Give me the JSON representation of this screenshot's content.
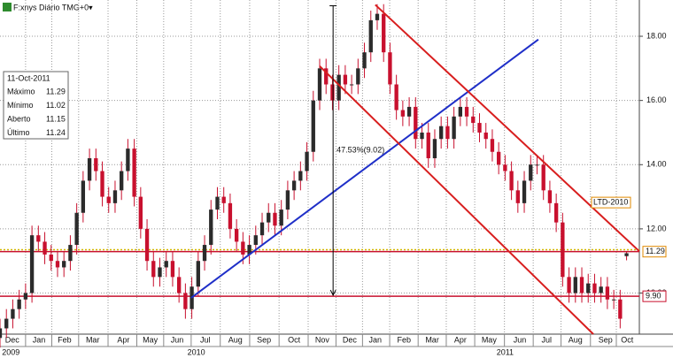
{
  "chart_data": {
    "type": "candlestick",
    "title": "F:xnys Diário TMG+0▾",
    "x": [
      0,
      1,
      2,
      3,
      4,
      5,
      6,
      7,
      8,
      9,
      10,
      11,
      12,
      13,
      14,
      15,
      16,
      17,
      18,
      19,
      20,
      21,
      22,
      23,
      24,
      25,
      26,
      27,
      28,
      29,
      30,
      31,
      32,
      33,
      34,
      35,
      36,
      37,
      38,
      39,
      40,
      41,
      42,
      43,
      44,
      45,
      46,
      47,
      48,
      49,
      50,
      51,
      52,
      53,
      54,
      55,
      56,
      57,
      58,
      59,
      60,
      61,
      62,
      63,
      64,
      65,
      66,
      67,
      68,
      69,
      70,
      71,
      72,
      73,
      74,
      75,
      76,
      77,
      78,
      79,
      80,
      81,
      82,
      83,
      84,
      85,
      86,
      87,
      88,
      89,
      90,
      91,
      92,
      93,
      94,
      95,
      96,
      97,
      98
    ],
    "open": [
      8.6,
      8.9,
      9.2,
      9.5,
      9.8,
      10.0,
      11.8,
      11.6,
      11.2,
      11.0,
      10.8,
      11.0,
      11.5,
      12.5,
      13.5,
      14.2,
      13.8,
      13.0,
      12.8,
      13.2,
      13.8,
      14.5,
      13.0,
      12.0,
      11.0,
      10.5,
      10.8,
      11.0,
      10.5,
      10.0,
      9.5,
      10.2,
      11.0,
      11.5,
      12.6,
      13.0,
      12.8,
      12.0,
      11.6,
      11.2,
      11.5,
      11.8,
      12.2,
      12.5,
      12.1,
      12.6,
      13.2,
      13.5,
      13.8,
      14.4,
      16.0,
      17.0,
      16.5,
      16.0,
      16.8,
      16.5,
      16.5,
      17.0,
      17.5,
      18.5,
      18.7,
      17.5,
      16.5,
      15.7,
      15.5,
      15.8,
      14.8,
      15.0,
      14.2,
      14.8,
      15.2,
      14.8,
      15.5,
      15.8,
      15.5,
      15.3,
      15.0,
      14.8,
      14.4,
      14.0,
      13.8,
      13.2,
      12.8,
      13.5,
      14.0,
      14.0,
      13.2,
      12.8,
      12.2,
      10.5,
      10.0,
      10.5,
      10.0,
      10.3,
      10.0,
      10.2,
      9.8,
      9.8,
      11.15
    ],
    "high": [
      9.2,
      9.5,
      9.8,
      10.1,
      10.3,
      12.1,
      12.1,
      11.9,
      11.5,
      11.3,
      11.3,
      11.8,
      12.8,
      13.8,
      14.5,
      14.5,
      14.1,
      13.3,
      13.5,
      14.1,
      14.8,
      14.8,
      13.3,
      12.3,
      11.3,
      11.1,
      11.3,
      11.3,
      10.8,
      10.3,
      10.5,
      11.3,
      11.8,
      12.9,
      13.3,
      13.3,
      13.1,
      12.3,
      11.9,
      11.8,
      12.1,
      12.5,
      12.8,
      12.8,
      12.9,
      13.5,
      13.8,
      14.1,
      14.7,
      16.3,
      17.3,
      17.3,
      16.8,
      17.1,
      17.1,
      16.8,
      17.3,
      17.8,
      18.8,
      19.0,
      19.0,
      17.8,
      16.8,
      16.0,
      16.1,
      16.1,
      15.3,
      15.3,
      15.1,
      15.5,
      15.5,
      15.8,
      16.1,
      16.1,
      15.8,
      15.6,
      15.3,
      15.1,
      14.7,
      14.3,
      14.1,
      13.5,
      13.8,
      14.3,
      14.3,
      14.3,
      13.5,
      13.1,
      12.5,
      10.8,
      10.8,
      10.8,
      10.6,
      10.6,
      10.5,
      10.5,
      10.1,
      10.1,
      11.29
    ],
    "low": [
      8.3,
      8.6,
      8.9,
      9.2,
      9.5,
      9.7,
      11.3,
      10.9,
      10.7,
      10.5,
      10.5,
      10.7,
      11.2,
      12.2,
      13.2,
      13.5,
      12.7,
      12.5,
      12.5,
      12.9,
      13.5,
      12.7,
      11.7,
      10.7,
      10.2,
      10.2,
      10.5,
      10.2,
      9.7,
      9.2,
      9.2,
      9.9,
      10.7,
      11.2,
      12.3,
      12.5,
      11.7,
      11.3,
      10.9,
      10.9,
      11.2,
      11.5,
      11.9,
      11.8,
      11.8,
      12.3,
      12.9,
      13.2,
      13.5,
      14.1,
      15.7,
      16.2,
      15.7,
      15.7,
      16.2,
      16.2,
      16.2,
      16.7,
      17.2,
      18.2,
      17.2,
      16.2,
      15.4,
      15.2,
      15.2,
      14.5,
      14.5,
      13.9,
      13.9,
      14.5,
      14.5,
      14.5,
      15.2,
      15.2,
      15.0,
      14.7,
      14.5,
      14.1,
      13.7,
      13.5,
      12.9,
      12.5,
      12.5,
      13.2,
      13.7,
      12.9,
      12.5,
      11.9,
      10.2,
      9.7,
      9.7,
      9.7,
      9.7,
      9.7,
      9.7,
      9.5,
      9.5,
      8.9,
      11.02
    ],
    "close": [
      8.9,
      9.2,
      9.5,
      9.8,
      10.0,
      11.8,
      11.6,
      11.2,
      11.0,
      10.8,
      11.0,
      11.5,
      12.5,
      13.5,
      14.2,
      13.8,
      13.0,
      12.8,
      13.2,
      13.8,
      14.5,
      13.0,
      12.0,
      11.0,
      10.5,
      10.8,
      11.0,
      10.5,
      10.0,
      9.5,
      10.2,
      11.0,
      11.5,
      12.6,
      13.0,
      12.8,
      12.0,
      11.6,
      11.2,
      11.5,
      11.8,
      12.2,
      12.5,
      12.1,
      12.6,
      13.2,
      13.5,
      13.8,
      14.4,
      16.0,
      17.0,
      16.5,
      16.0,
      16.8,
      16.5,
      16.5,
      17.0,
      17.5,
      18.5,
      18.7,
      17.5,
      16.5,
      15.7,
      15.5,
      15.8,
      14.8,
      15.0,
      14.2,
      14.8,
      15.2,
      14.8,
      15.5,
      15.8,
      15.5,
      15.3,
      15.0,
      14.8,
      14.4,
      14.0,
      13.8,
      13.2,
      12.8,
      13.5,
      14.0,
      14.0,
      13.2,
      12.8,
      12.2,
      10.5,
      10.0,
      10.5,
      10.0,
      10.3,
      10.0,
      10.2,
      9.8,
      9.8,
      9.2,
      11.24
    ],
    "up_color": "#2b2b2b",
    "down_color": "#c8102e",
    "xlim": [
      0,
      100
    ],
    "ylim": [
      8.72,
      19.13
    ],
    "yticks": [
      {
        "value": 10,
        "label": "10.00"
      },
      {
        "value": 12,
        "label": "12.00"
      },
      {
        "value": 14,
        "label": "14.00"
      },
      {
        "value": 16,
        "label": "16.00"
      },
      {
        "value": 18,
        "label": "18.00"
      }
    ],
    "xticks": [
      {
        "value": 1.9,
        "label": "Dec"
      },
      {
        "value": 6.1,
        "label": "Jan"
      },
      {
        "value": 10.1,
        "label": "Feb"
      },
      {
        "value": 14.5,
        "label": "Mar"
      },
      {
        "value": 19.3,
        "label": "Apr"
      },
      {
        "value": 23.5,
        "label": "May"
      },
      {
        "value": 27.7,
        "label": "Jun"
      },
      {
        "value": 32.1,
        "label": "Jul"
      },
      {
        "value": 36.8,
        "label": "Aug"
      },
      {
        "value": 41.3,
        "label": "Sep"
      },
      {
        "value": 46.0,
        "label": "Oct"
      },
      {
        "value": 50.4,
        "label": "Nov"
      },
      {
        "value": 54.7,
        "label": "Dec"
      },
      {
        "value": 58.7,
        "label": "Jan"
      },
      {
        "value": 63.2,
        "label": "Feb"
      },
      {
        "value": 67.6,
        "label": "Mar"
      },
      {
        "value": 72.0,
        "label": "Apr"
      },
      {
        "value": 76.5,
        "label": "May"
      },
      {
        "value": 81.3,
        "label": "Jun"
      },
      {
        "value": 85.5,
        "label": "Jul"
      },
      {
        "value": 90.0,
        "label": "Aug"
      },
      {
        "value": 94.7,
        "label": "Sep"
      },
      {
        "value": 98.1,
        "label": "Oct"
      }
    ],
    "year_labels": [
      {
        "value": 1.7,
        "label": "2009"
      },
      {
        "value": 30.7,
        "label": "2010"
      },
      {
        "value": 79.0,
        "label": "2011"
      }
    ],
    "grid": true,
    "hlines": [
      {
        "value": 11.29,
        "label": "11.29",
        "color": "#c8102e",
        "tag_border": "#e08a00"
      },
      {
        "value": 9.9,
        "label": "9.90",
        "color": "#c8102e",
        "tag_border": "#c8102e"
      }
    ],
    "dotted_lines": [
      {
        "value": 11.35,
        "color": "#d4b800"
      }
    ],
    "trendlines": [
      {
        "x": [
          29.9,
          84.2
        ],
        "y": [
          9.85,
          17.9
        ],
        "color": "#1f2fc8"
      },
      {
        "x": [
          58.7,
          100
        ],
        "y": [
          18.98,
          11.3
        ],
        "color": "#d81e1e"
      },
      {
        "x": [
          50.0,
          92.8
        ],
        "y": [
          17.07,
          8.72
        ],
        "color": "#d81e1e"
      }
    ],
    "measure": {
      "x": 52.1,
      "from": 18.95,
      "to": 9.93,
      "label": "47.53%(9.02)"
    },
    "annotation": {
      "x": 92.8,
      "y": 12.82,
      "label": "LTD-2010"
    },
    "info": {
      "date": "11-Oct-2011",
      "rows": [
        [
          "Máximo",
          "11.29"
        ],
        [
          "Mínimo",
          "11.02"
        ],
        [
          "Aberto",
          "11.15"
        ],
        [
          "Último",
          "11.24"
        ]
      ]
    }
  }
}
